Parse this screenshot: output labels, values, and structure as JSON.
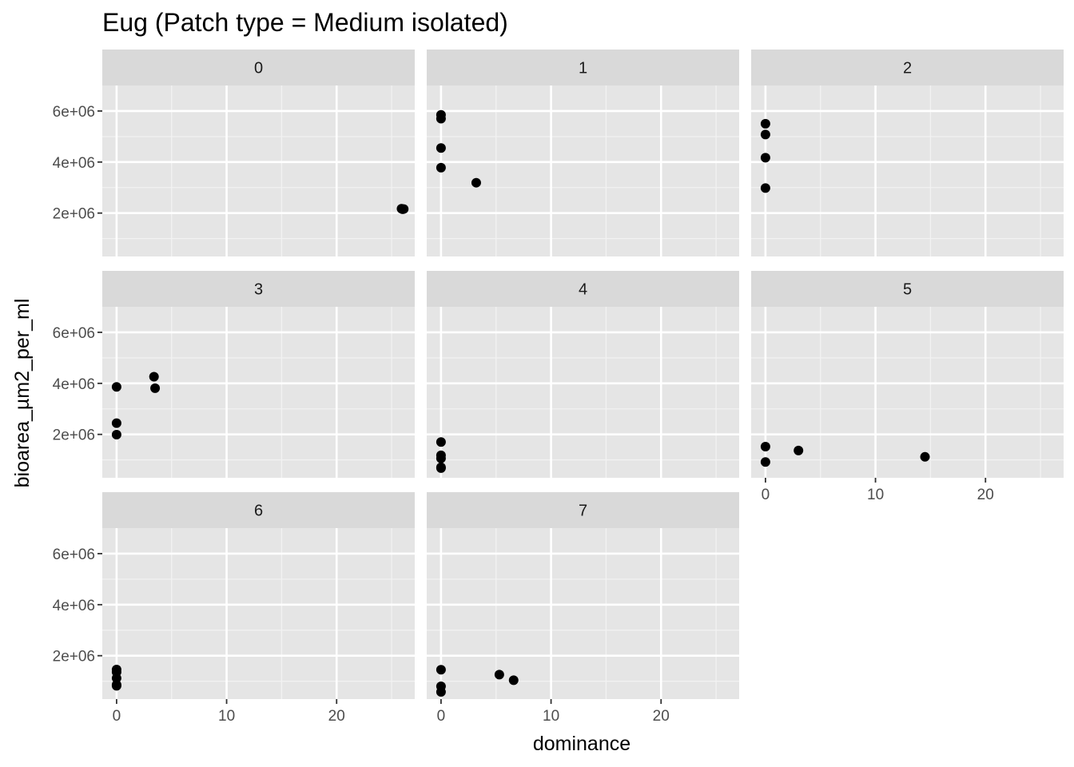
{
  "chart_data": {
    "type": "scatter",
    "title": "Eug (Patch type = Medium isolated)",
    "xlabel": "dominance",
    "ylabel": "bioarea_µm2_per_ml",
    "xlim": [
      -1.3,
      27.1
    ],
    "ylim": [
      300000,
      7000000
    ],
    "x_ticks": [
      0,
      10,
      20
    ],
    "y_ticks": [
      2000000,
      4000000,
      6000000
    ],
    "y_tick_labels": [
      "2e+06",
      "4e+06",
      "6e+06"
    ],
    "grid": true,
    "panel_background": "#e5e5e5",
    "strip_background": "#d9d9d9",
    "point_color": "#000000",
    "facets": [
      {
        "label": "0",
        "points": [
          [
            26.0,
            2150000
          ],
          [
            26.1,
            2160000
          ],
          [
            25.9,
            2170000
          ]
        ]
      },
      {
        "label": "1",
        "points": [
          [
            0,
            5850000
          ],
          [
            0,
            5700000
          ],
          [
            0,
            4550000
          ],
          [
            0,
            3780000
          ],
          [
            3.2,
            3190000
          ]
        ]
      },
      {
        "label": "2",
        "points": [
          [
            0,
            5500000
          ],
          [
            0,
            5080000
          ],
          [
            0,
            4170000
          ],
          [
            0,
            2980000
          ]
        ]
      },
      {
        "label": "3",
        "points": [
          [
            0,
            3860000
          ],
          [
            0,
            2440000
          ],
          [
            0,
            1990000
          ],
          [
            3.4,
            4260000
          ],
          [
            3.5,
            3810000
          ]
        ]
      },
      {
        "label": "4",
        "points": [
          [
            0,
            1700000
          ],
          [
            0,
            1180000
          ],
          [
            0,
            1060000
          ],
          [
            0,
            710000
          ],
          [
            0,
            680000
          ]
        ]
      },
      {
        "label": "5",
        "points": [
          [
            0,
            1520000
          ],
          [
            0,
            920000
          ],
          [
            3.0,
            1370000
          ],
          [
            14.5,
            1120000
          ]
        ]
      },
      {
        "label": "6",
        "points": [
          [
            0,
            1460000
          ],
          [
            0,
            1360000
          ],
          [
            0,
            1120000
          ],
          [
            0,
            860000
          ],
          [
            0,
            820000
          ]
        ]
      },
      {
        "label": "7",
        "points": [
          [
            0,
            1450000
          ],
          [
            0,
            800000
          ],
          [
            0,
            580000
          ],
          [
            5.3,
            1260000
          ],
          [
            6.6,
            1040000
          ]
        ]
      }
    ]
  }
}
